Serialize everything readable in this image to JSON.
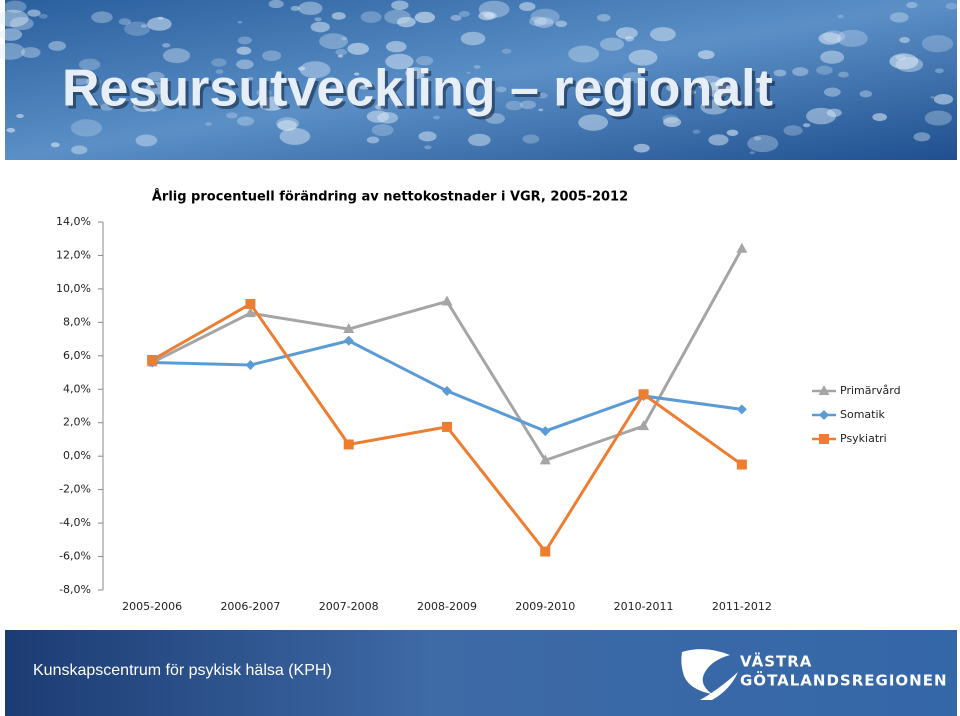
{
  "slide": {
    "title": "Resursutveckling – regionalt"
  },
  "chart_data": {
    "type": "line",
    "title": "Årlig procentuell förändring av nettokostnader i VGR, 2005-2012",
    "categories": [
      "2005-2006",
      "2006-2007",
      "2007-2008",
      "2008-2009",
      "2009-2010",
      "2010-2011",
      "2011-2012"
    ],
    "series": [
      {
        "name": "Primärvård",
        "color": "#a5a5a5",
        "marker": "triangle",
        "values": [
          5.6,
          8.55,
          7.6,
          9.25,
          -0.25,
          1.8,
          12.4
        ]
      },
      {
        "name": "Somatik",
        "color": "#5b9bd5",
        "marker": "diamond",
        "values": [
          5.6,
          5.45,
          6.9,
          3.9,
          1.5,
          3.6,
          2.8
        ]
      },
      {
        "name": "Psykiatri",
        "color": "#ed7d31",
        "marker": "square",
        "values": [
          5.75,
          9.1,
          0.7,
          1.75,
          -5.7,
          3.7,
          -0.5
        ]
      }
    ],
    "ylim": [
      -8,
      14
    ],
    "yticks": [
      {
        "value": -8,
        "label": "-8,0%"
      },
      {
        "value": -6,
        "label": "-6,0%"
      },
      {
        "value": -4,
        "label": "-4,0%"
      },
      {
        "value": -2,
        "label": "-2,0%"
      },
      {
        "value": 0,
        "label": "0,0%"
      },
      {
        "value": 2,
        "label": "2,0%"
      },
      {
        "value": 4,
        "label": "4,0%"
      },
      {
        "value": 6,
        "label": "6,0%"
      },
      {
        "value": 8,
        "label": "8,0%"
      },
      {
        "value": 10,
        "label": "10,0%"
      },
      {
        "value": 12,
        "label": "12,0%"
      },
      {
        "value": 14,
        "label": "14,0%"
      }
    ],
    "legend": "right"
  },
  "footer": {
    "text": "Kunskapscentrum för psykisk hälsa (KPH)",
    "logo_line1": "VÄSTRA",
    "logo_line2": "GÖTALANDSREGIONEN"
  }
}
